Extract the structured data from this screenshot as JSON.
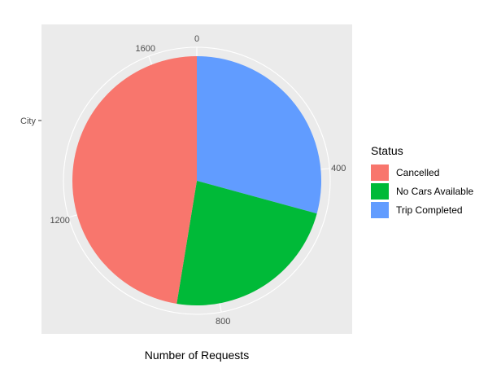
{
  "chart_data": {
    "type": "pie",
    "title": "",
    "xlabel": "Number of Requests",
    "ylabel": "City",
    "y_tick_labels": [
      "City"
    ],
    "radial_ticks": [
      0,
      400,
      800,
      1200,
      1600
    ],
    "total_max": 1700,
    "start_at_top": true,
    "direction": "clockwise",
    "legend_title": "Status",
    "legend_position": "right",
    "slices": [
      {
        "label": "Trip Completed",
        "value": 497,
        "color": "#619CFF"
      },
      {
        "label": "No Cars Available",
        "value": 397,
        "color": "#00BA38"
      },
      {
        "label": "Cancelled",
        "value": 806,
        "color": "#F8766D"
      }
    ],
    "panel_background": "#EBEBEB",
    "grid_color": "#FFFFFF"
  },
  "legend": {
    "title": "Status",
    "items": [
      {
        "label": "Cancelled",
        "color": "#F8766D"
      },
      {
        "label": "No Cars Available",
        "color": "#00BA38"
      },
      {
        "label": "Trip Completed",
        "color": "#619CFF"
      }
    ]
  }
}
